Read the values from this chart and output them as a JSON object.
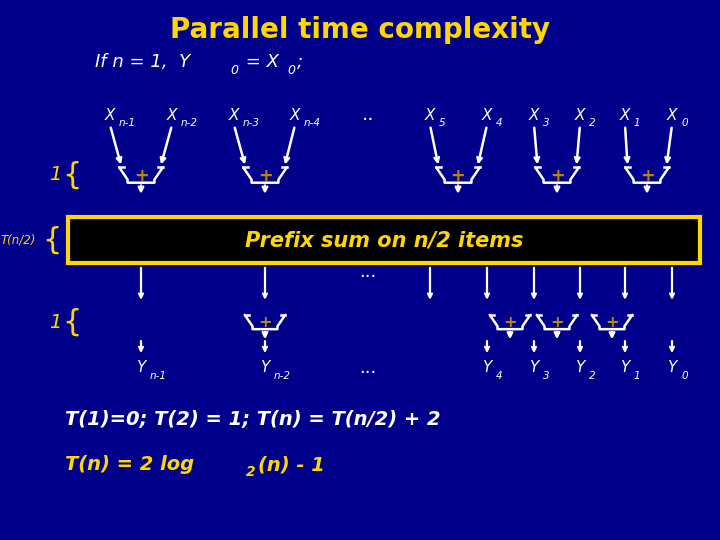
{
  "bg_color": "#00008B",
  "title": "Parallel time complexity",
  "title_color": "#FFD700",
  "title_fontsize": 20,
  "text_color": "#FFFFFF",
  "yellow_color": "#FFD700",
  "gate_color": "#FFFFFF",
  "gate_plus_color": "#B8860B",
  "prefix_box_color": "#FFD700",
  "prefix_box_bg": "#000000",
  "prefix_text": "Prefix sum on n/2 items",
  "bottom_text1": "T(1)=0; T(2) = 1; T(n) = T(n/2) + 2",
  "figsize": [
    7.2,
    5.4
  ],
  "dpi": 100
}
